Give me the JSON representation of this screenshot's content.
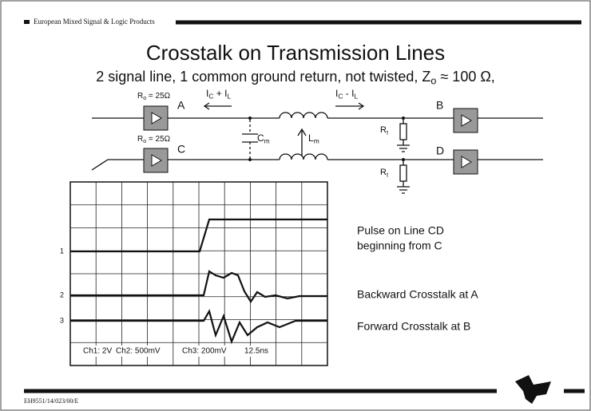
{
  "header": {
    "title": "European Mixed Signal & Logic Products"
  },
  "title": "Crosstalk on Transmission Lines",
  "subtitle": [
    {
      "t": "2 signal line, 1 common ground return, not twisted, Z"
    },
    {
      "s": "o"
    },
    {
      "t": " ≈ 100 Ω,"
    }
  ],
  "circuit": {
    "ro_a": [
      {
        "t": "R"
      },
      {
        "s": "o"
      },
      {
        "t": " = 25Ω"
      }
    ],
    "ro_c": [
      {
        "t": "R"
      },
      {
        "s": "o"
      },
      {
        "t": " = 25Ω"
      }
    ],
    "node_a": "A",
    "node_b": "B",
    "node_c": "C",
    "node_d": "D",
    "current_back": [
      {
        "t": "I"
      },
      {
        "s": "C"
      },
      {
        "t": " + I"
      },
      {
        "s": "L"
      }
    ],
    "current_fwd": [
      {
        "t": "I"
      },
      {
        "s": "C"
      },
      {
        "t": " - I"
      },
      {
        "s": "L"
      }
    ],
    "cm": [
      {
        "t": "C"
      },
      {
        "s": "m"
      }
    ],
    "lm": [
      {
        "t": "L"
      },
      {
        "s": "m"
      }
    ],
    "rt_top": [
      {
        "t": "R"
      },
      {
        "s": "t"
      }
    ],
    "rt_bottom": [
      {
        "t": "R"
      },
      {
        "s": "t"
      }
    ]
  },
  "scope": {
    "channels": [
      "1",
      "2",
      "3"
    ],
    "settings": [
      "Ch1: 2V",
      "Ch2: 500mV",
      "Ch3: 200mV",
      "12.5ns"
    ]
  },
  "annotations": {
    "pulse": [
      "Pulse on Line CD",
      "beginning from C"
    ],
    "backward": "Backward Crosstalk at A",
    "forward": "Forward Crosstalk at B"
  },
  "footer": {
    "code": "EH9551/14/023/00/E"
  }
}
